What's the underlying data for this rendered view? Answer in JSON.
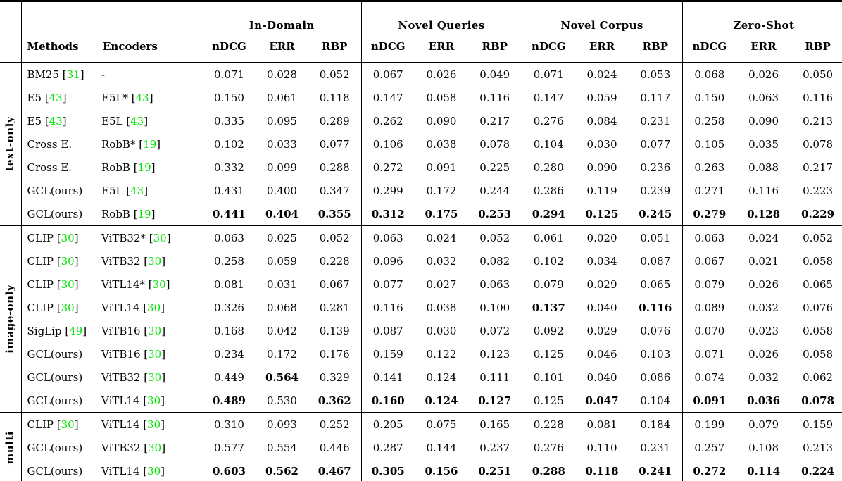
{
  "colors": {
    "citation": "#00e600",
    "text": "#000000",
    "rule": "#000000"
  },
  "header": {
    "methods": "Methods",
    "encoders": "Encoders",
    "groups": [
      {
        "label": "In-Domain",
        "metrics": [
          "nDCG",
          "ERR",
          "RBP"
        ]
      },
      {
        "label": "Novel Queries",
        "metrics": [
          "nDCG",
          "ERR",
          "RBP"
        ]
      },
      {
        "label": "Novel Corpus",
        "metrics": [
          "nDCG",
          "ERR",
          "RBP"
        ]
      },
      {
        "label": "Zero-Shot",
        "metrics": [
          "nDCG",
          "ERR",
          "RBP"
        ]
      }
    ]
  },
  "sections": [
    {
      "label": "text-only",
      "rows": [
        {
          "method": "BM25",
          "method_cite": "31",
          "encoder": "-",
          "encoder_cite": null,
          "values": [
            "0.071",
            "0.028",
            "0.052",
            "0.067",
            "0.026",
            "0.049",
            "0.071",
            "0.024",
            "0.053",
            "0.068",
            "0.026",
            "0.050"
          ],
          "bold": [
            0,
            0,
            0,
            0,
            0,
            0,
            0,
            0,
            0,
            0,
            0,
            0
          ]
        },
        {
          "method": "E5",
          "method_cite": "43",
          "encoder": "E5L*",
          "encoder_cite": "43",
          "values": [
            "0.150",
            "0.061",
            "0.118",
            "0.147",
            "0.058",
            "0.116",
            "0.147",
            "0.059",
            "0.117",
            "0.150",
            "0.063",
            "0.116"
          ],
          "bold": [
            0,
            0,
            0,
            0,
            0,
            0,
            0,
            0,
            0,
            0,
            0,
            0
          ]
        },
        {
          "method": "E5",
          "method_cite": "43",
          "encoder": "E5L",
          "encoder_cite": "43",
          "values": [
            "0.335",
            "0.095",
            "0.289",
            "0.262",
            "0.090",
            "0.217",
            "0.276",
            "0.084",
            "0.231",
            "0.258",
            "0.090",
            "0.213"
          ],
          "bold": [
            0,
            0,
            0,
            0,
            0,
            0,
            0,
            0,
            0,
            0,
            0,
            0
          ]
        },
        {
          "method": "Cross E.",
          "method_cite": null,
          "encoder": "RobB*",
          "encoder_cite": "19",
          "values": [
            "0.102",
            "0.033",
            "0.077",
            "0.106",
            "0.038",
            "0.078",
            "0.104",
            "0.030",
            "0.077",
            "0.105",
            "0.035",
            "0.078"
          ],
          "bold": [
            0,
            0,
            0,
            0,
            0,
            0,
            0,
            0,
            0,
            0,
            0,
            0
          ]
        },
        {
          "method": "Cross E.",
          "method_cite": null,
          "encoder": "RobB",
          "encoder_cite": "19",
          "values": [
            "0.332",
            "0.099",
            "0.288",
            "0.272",
            "0.091",
            "0.225",
            "0.280",
            "0.090",
            "0.236",
            "0.263",
            "0.088",
            "0.217"
          ],
          "bold": [
            0,
            0,
            0,
            0,
            0,
            0,
            0,
            0,
            0,
            0,
            0,
            0
          ]
        },
        {
          "method": "GCL(ours)",
          "method_cite": null,
          "encoder": "E5L",
          "encoder_cite": "43",
          "values": [
            "0.431",
            "0.400",
            "0.347",
            "0.299",
            "0.172",
            "0.244",
            "0.286",
            "0.119",
            "0.239",
            "0.271",
            "0.116",
            "0.223"
          ],
          "bold": [
            0,
            0,
            0,
            0,
            0,
            0,
            0,
            0,
            0,
            0,
            0,
            0
          ]
        },
        {
          "method": "GCL(ours)",
          "method_cite": null,
          "encoder": "RobB",
          "encoder_cite": "19",
          "values": [
            "0.441",
            "0.404",
            "0.355",
            "0.312",
            "0.175",
            "0.253",
            "0.294",
            "0.125",
            "0.245",
            "0.279",
            "0.128",
            "0.229"
          ],
          "bold": [
            1,
            1,
            1,
            1,
            1,
            1,
            1,
            1,
            1,
            1,
            1,
            1
          ]
        }
      ]
    },
    {
      "label": "image-only",
      "rows": [
        {
          "method": "CLIP",
          "method_cite": "30",
          "encoder": "ViTB32*",
          "encoder_cite": "30",
          "values": [
            "0.063",
            "0.025",
            "0.052",
            "0.063",
            "0.024",
            "0.052",
            "0.061",
            "0.020",
            "0.051",
            "0.063",
            "0.024",
            "0.052"
          ],
          "bold": [
            0,
            0,
            0,
            0,
            0,
            0,
            0,
            0,
            0,
            0,
            0,
            0
          ]
        },
        {
          "method": "CLIP",
          "method_cite": "30",
          "encoder": "ViTB32",
          "encoder_cite": "30",
          "values": [
            "0.258",
            "0.059",
            "0.228",
            "0.096",
            "0.032",
            "0.082",
            "0.102",
            "0.034",
            "0.087",
            "0.067",
            "0.021",
            "0.058"
          ],
          "bold": [
            0,
            0,
            0,
            0,
            0,
            0,
            0,
            0,
            0,
            0,
            0,
            0
          ]
        },
        {
          "method": "CLIP",
          "method_cite": "30",
          "encoder": "ViTL14*",
          "encoder_cite": "30",
          "values": [
            "0.081",
            "0.031",
            "0.067",
            "0.077",
            "0.027",
            "0.063",
            "0.079",
            "0.029",
            "0.065",
            "0.079",
            "0.026",
            "0.065"
          ],
          "bold": [
            0,
            0,
            0,
            0,
            0,
            0,
            0,
            0,
            0,
            0,
            0,
            0
          ]
        },
        {
          "method": "CLIP",
          "method_cite": "30",
          "encoder": "ViTL14",
          "encoder_cite": "30",
          "values": [
            "0.326",
            "0.068",
            "0.281",
            "0.116",
            "0.038",
            "0.100",
            "0.137",
            "0.040",
            "0.116",
            "0.089",
            "0.032",
            "0.076"
          ],
          "bold": [
            0,
            0,
            0,
            0,
            0,
            0,
            1,
            0,
            1,
            0,
            0,
            0
          ]
        },
        {
          "method": "SigLip",
          "method_cite": "49",
          "encoder": "ViTB16",
          "encoder_cite": "30",
          "values": [
            "0.168",
            "0.042",
            "0.139",
            "0.087",
            "0.030",
            "0.072",
            "0.092",
            "0.029",
            "0.076",
            "0.070",
            "0.023",
            "0.058"
          ],
          "bold": [
            0,
            0,
            0,
            0,
            0,
            0,
            0,
            0,
            0,
            0,
            0,
            0
          ]
        },
        {
          "method": "GCL(ours)",
          "method_cite": null,
          "encoder": "ViTB16",
          "encoder_cite": "30",
          "values": [
            "0.234",
            "0.172",
            "0.176",
            "0.159",
            "0.122",
            "0.123",
            "0.125",
            "0.046",
            "0.103",
            "0.071",
            "0.026",
            "0.058"
          ],
          "bold": [
            0,
            0,
            0,
            0,
            0,
            0,
            0,
            0,
            0,
            0,
            0,
            0
          ]
        },
        {
          "method": "GCL(ours)",
          "method_cite": null,
          "encoder": "ViTB32",
          "encoder_cite": "30",
          "values": [
            "0.449",
            "0.564",
            "0.329",
            "0.141",
            "0.124",
            "0.111",
            "0.101",
            "0.040",
            "0.086",
            "0.074",
            "0.032",
            "0.062"
          ],
          "bold": [
            0,
            1,
            0,
            0,
            0,
            0,
            0,
            0,
            0,
            0,
            0,
            0
          ]
        },
        {
          "method": "GCL(ours)",
          "method_cite": null,
          "encoder": "ViTL14",
          "encoder_cite": "30",
          "values": [
            "0.489",
            "0.530",
            "0.362",
            "0.160",
            "0.124",
            "0.127",
            "0.125",
            "0.047",
            "0.104",
            "0.091",
            "0.036",
            "0.078"
          ],
          "bold": [
            1,
            0,
            1,
            1,
            1,
            1,
            0,
            1,
            0,
            1,
            1,
            1
          ]
        }
      ]
    },
    {
      "label": "multi",
      "rows": [
        {
          "method": "CLIP",
          "method_cite": "30",
          "encoder": "ViTL14",
          "encoder_cite": "30",
          "values": [
            "0.310",
            "0.093",
            "0.252",
            "0.205",
            "0.075",
            "0.165",
            "0.228",
            "0.081",
            "0.184",
            "0.199",
            "0.079",
            "0.159"
          ],
          "bold": [
            0,
            0,
            0,
            0,
            0,
            0,
            0,
            0,
            0,
            0,
            0,
            0
          ]
        },
        {
          "method": "GCL(ours)",
          "method_cite": null,
          "encoder": "ViTB32",
          "encoder_cite": "30",
          "values": [
            "0.577",
            "0.554",
            "0.446",
            "0.287",
            "0.144",
            "0.237",
            "0.276",
            "0.110",
            "0.231",
            "0.257",
            "0.108",
            "0.213"
          ],
          "bold": [
            0,
            0,
            0,
            0,
            0,
            0,
            0,
            0,
            0,
            0,
            0,
            0
          ]
        },
        {
          "method": "GCL(ours)",
          "method_cite": null,
          "encoder": "ViTL14",
          "encoder_cite": "30",
          "values": [
            "0.603",
            "0.562",
            "0.467",
            "0.305",
            "0.156",
            "0.251",
            "0.288",
            "0.118",
            "0.241",
            "0.272",
            "0.114",
            "0.224"
          ],
          "bold": [
            1,
            1,
            1,
            1,
            1,
            1,
            1,
            1,
            1,
            1,
            1,
            1
          ]
        }
      ]
    }
  ]
}
